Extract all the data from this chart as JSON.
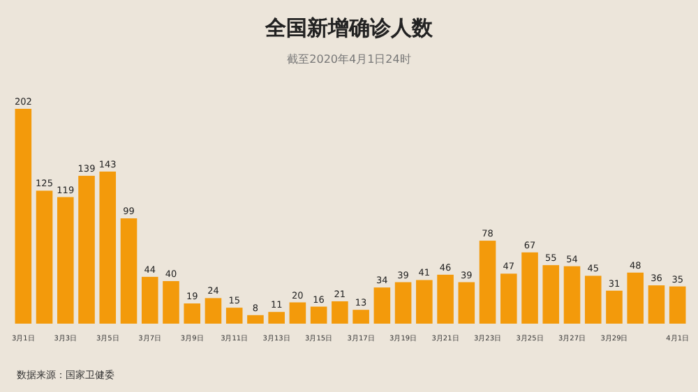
{
  "chart_data": {
    "type": "bar",
    "title": "全国新增确诊人数",
    "subtitle": "截至2020年4月1日24时",
    "categories": [
      "3月1日",
      null,
      "3月3日",
      null,
      "3月5日",
      null,
      "3月7日",
      null,
      "3月9日",
      null,
      "3月11日",
      null,
      "3月13日",
      null,
      "3月15日",
      null,
      "3月17日",
      null,
      "3月19日",
      null,
      "3月21日",
      null,
      "3月23日",
      null,
      "3月25日",
      null,
      "3月27日",
      null,
      "3月29日",
      null,
      null,
      "4月1日"
    ],
    "values": [
      202,
      125,
      119,
      139,
      143,
      99,
      44,
      40,
      19,
      24,
      15,
      8,
      11,
      20,
      16,
      21,
      13,
      34,
      39,
      41,
      46,
      39,
      78,
      47,
      67,
      55,
      54,
      45,
      31,
      48,
      36,
      35
    ],
    "color": "#f39a0b",
    "data_labels": true,
    "annotations": [
      "数据来源：国家卫健委"
    ]
  }
}
